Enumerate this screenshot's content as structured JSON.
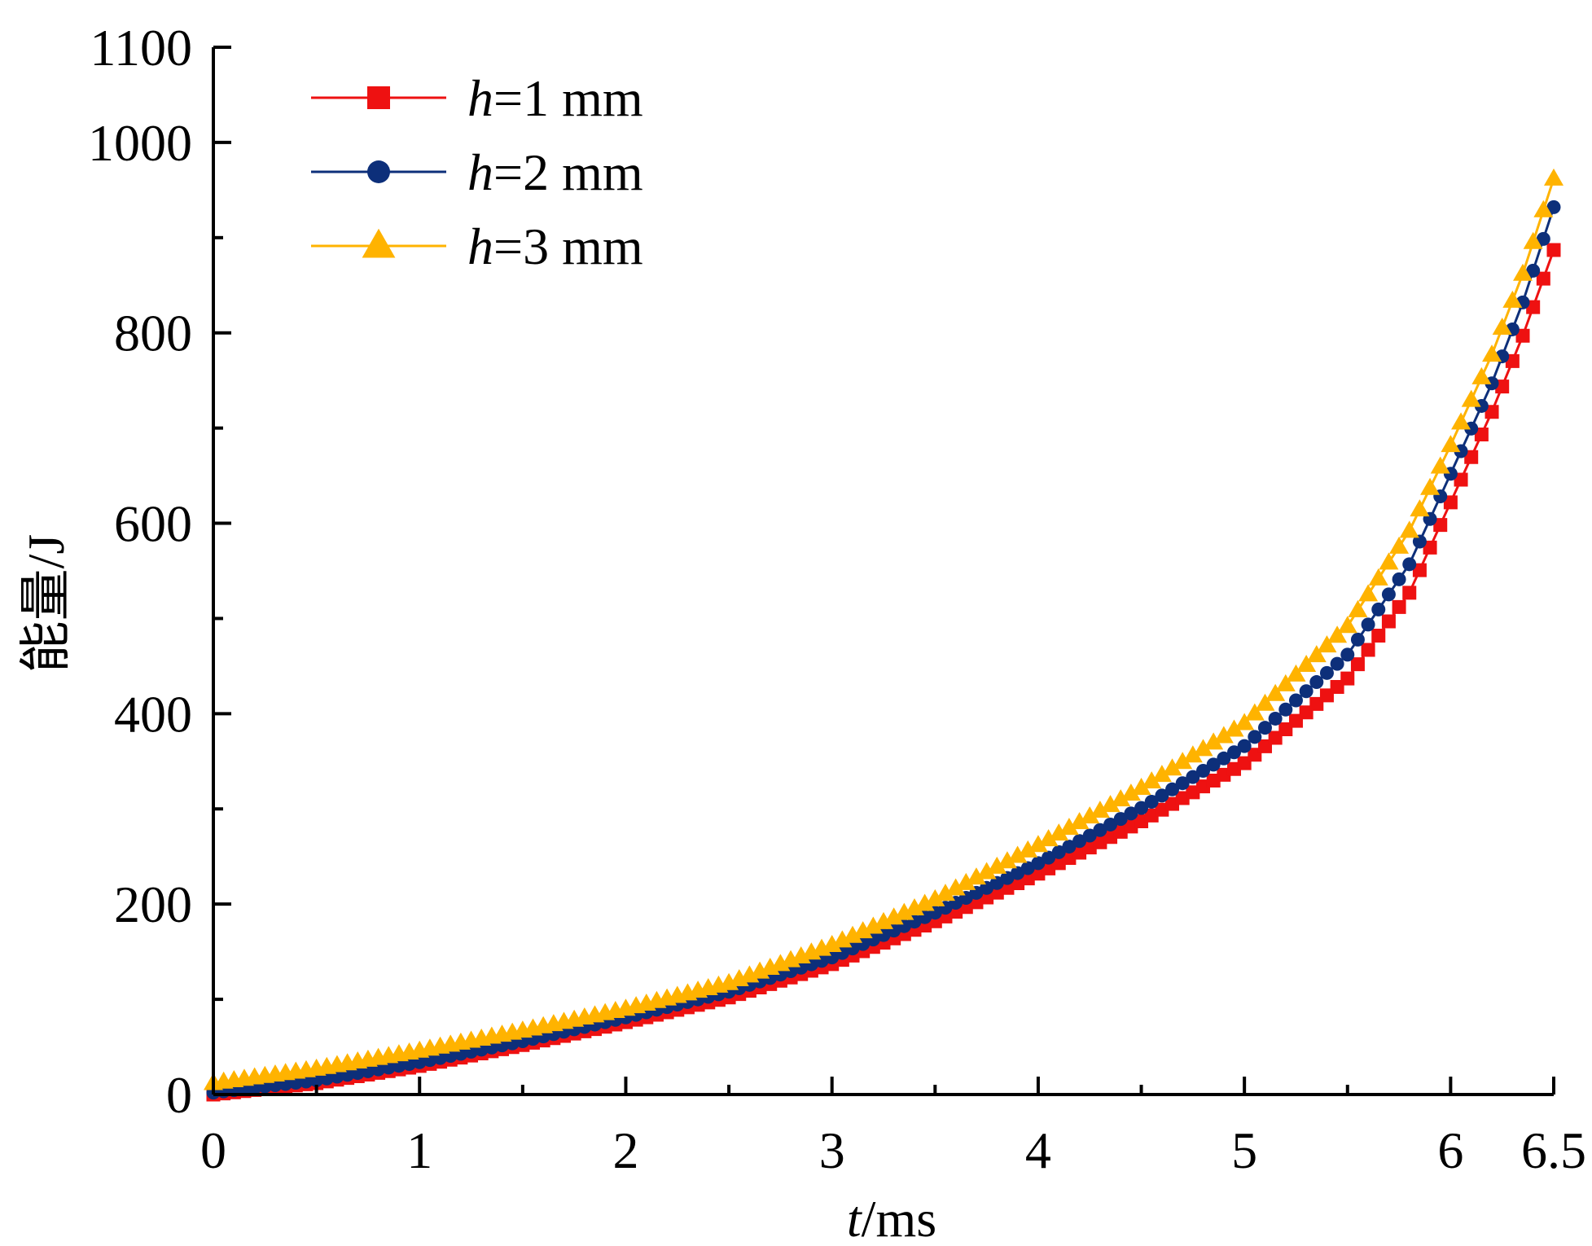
{
  "chart_data": {
    "type": "scatter",
    "xlabel_italic": "t",
    "xlabel_unit": "/ms",
    "ylabel": "能量/J",
    "xlim": [
      0,
      6.5
    ],
    "ylim": [
      0,
      1100
    ],
    "x_ticks": [
      0,
      1,
      2,
      3,
      4,
      5,
      6,
      6.5
    ],
    "x_tick_labels": [
      "0",
      "1",
      "2",
      "3",
      "4",
      "5",
      "6",
      "6.5"
    ],
    "y_ticks": [
      0,
      200,
      400,
      600,
      800,
      1000,
      1100
    ],
    "y_tick_labels": [
      "0",
      "200",
      "400",
      "600",
      "800",
      "1000",
      "1100"
    ],
    "legend_position": "top-left",
    "series": [
      {
        "name": "h=1 mm",
        "name_italic": "h",
        "name_rest": "=1 mm",
        "color": "#ee1111",
        "marker": "square",
        "points": [
          [
            0.0,
            0
          ],
          [
            0.5,
            12
          ],
          [
            1.0,
            30
          ],
          [
            1.5,
            52
          ],
          [
            2.0,
            76
          ],
          [
            2.5,
            102
          ],
          [
            3.0,
            137
          ],
          [
            3.5,
            182
          ],
          [
            4.0,
            232
          ],
          [
            4.5,
            287
          ],
          [
            5.0,
            348
          ],
          [
            5.5,
            437
          ],
          [
            5.8,
            527
          ],
          [
            6.0,
            622
          ],
          [
            6.2,
            717
          ],
          [
            6.35,
            797
          ],
          [
            6.5,
            887
          ]
        ]
      },
      {
        "name": "h=2 mm",
        "name_italic": "h",
        "name_rest": "=2 mm",
        "color": "#0d2f7a",
        "marker": "circle",
        "points": [
          [
            0.0,
            2
          ],
          [
            0.5,
            15
          ],
          [
            1.0,
            34
          ],
          [
            1.5,
            56
          ],
          [
            2.0,
            81
          ],
          [
            2.5,
            108
          ],
          [
            3.0,
            144
          ],
          [
            3.5,
            191
          ],
          [
            4.0,
            243
          ],
          [
            4.5,
            301
          ],
          [
            5.0,
            366
          ],
          [
            5.5,
            462
          ],
          [
            5.8,
            557
          ],
          [
            6.0,
            652
          ],
          [
            6.2,
            747
          ],
          [
            6.35,
            832
          ],
          [
            6.5,
            932
          ]
        ]
      },
      {
        "name": "h=3 mm",
        "name_italic": "h",
        "name_rest": "=3 mm",
        "color": "#ffb300",
        "marker": "triangle",
        "points": [
          [
            0.0,
            12
          ],
          [
            0.5,
            27
          ],
          [
            1.0,
            46
          ],
          [
            1.5,
            67
          ],
          [
            2.0,
            90
          ],
          [
            2.5,
            117
          ],
          [
            3.0,
            157
          ],
          [
            3.5,
            205
          ],
          [
            4.0,
            262
          ],
          [
            4.5,
            322
          ],
          [
            5.0,
            390
          ],
          [
            5.5,
            492
          ],
          [
            5.8,
            592
          ],
          [
            6.0,
            682
          ],
          [
            6.2,
            777
          ],
          [
            6.35,
            862
          ],
          [
            6.5,
            962
          ]
        ]
      }
    ]
  }
}
